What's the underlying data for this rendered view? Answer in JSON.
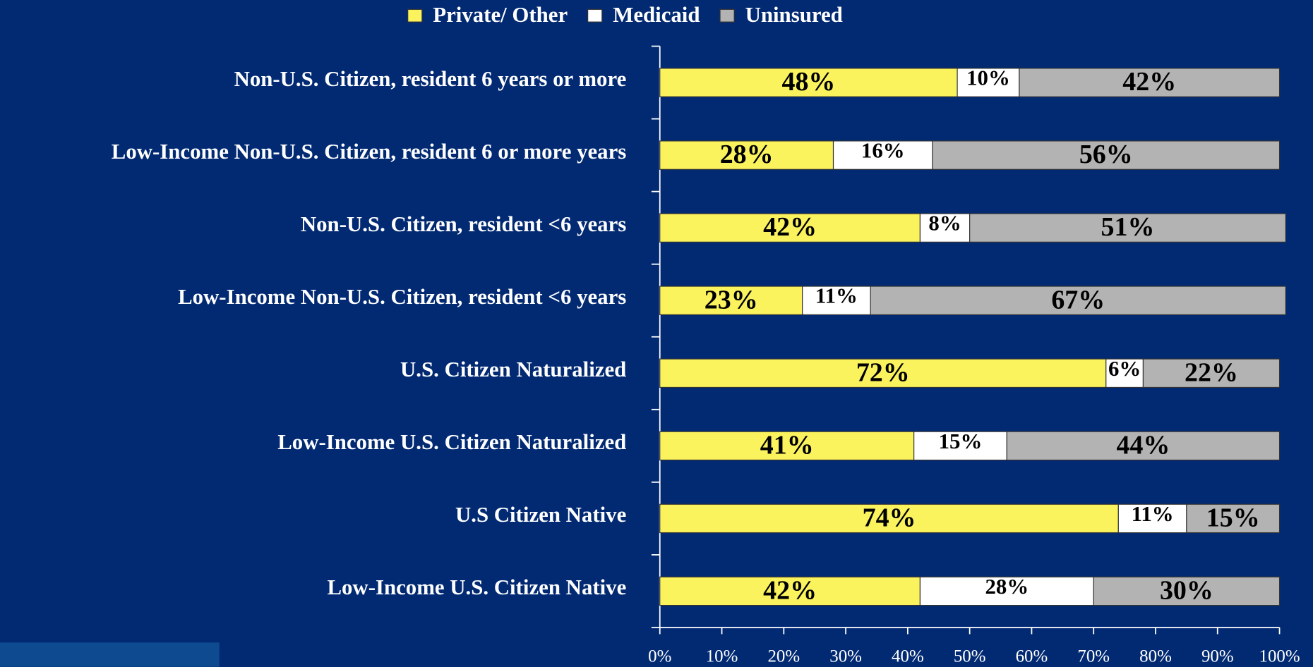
{
  "chart_data": {
    "type": "bar",
    "orientation": "horizontal",
    "stacked": true,
    "categories": [
      "Non-U.S. Citizen, resident 6 years or more",
      "Low-Income Non-U.S. Citizen, resident 6 or more years",
      "Non-U.S. Citizen, resident <6 years",
      "Low-Income Non-U.S. Citizen, resident <6 years",
      "U.S. Citizen Naturalized",
      "Low-Income U.S. Citizen Naturalized",
      "U.S Citizen Native",
      "Low-Income U.S. Citizen Native"
    ],
    "series": [
      {
        "name": "Private/ Other",
        "color": "#fbf35e",
        "values": [
          48,
          28,
          42,
          23,
          72,
          41,
          74,
          42
        ],
        "value_labels": [
          "48%",
          "28%",
          "42%",
          "23%",
          "72%",
          "41%",
          "74%",
          "42%"
        ]
      },
      {
        "name": "Medicaid",
        "color": "#ffffff",
        "values": [
          10,
          16,
          8,
          11,
          6,
          15,
          11,
          28
        ],
        "value_labels": [
          "10%",
          "16%",
          "8%",
          "11%",
          "6%",
          "15%",
          "11%",
          "28%"
        ]
      },
      {
        "name": "Uninsured",
        "color": "#b3b3b3",
        "values": [
          42,
          56,
          51,
          67,
          22,
          44,
          15,
          30
        ],
        "value_labels": [
          "42%",
          "56%",
          "51%",
          "67%",
          "22%",
          "44%",
          "15%",
          "30%"
        ]
      }
    ],
    "xlim": [
      0,
      100
    ],
    "xticks": [
      {
        "value": 0,
        "label": "0%"
      },
      {
        "value": 10,
        "label": "10%"
      },
      {
        "value": 20,
        "label": "20%"
      },
      {
        "value": 30,
        "label": "30%"
      },
      {
        "value": 40,
        "label": "40%"
      },
      {
        "value": 50,
        "label": "50%"
      },
      {
        "value": 60,
        "label": "60%"
      },
      {
        "value": 70,
        "label": "70%"
      },
      {
        "value": 80,
        "label": "80%"
      },
      {
        "value": 90,
        "label": "90%"
      },
      {
        "value": 100,
        "label": "100%"
      }
    ],
    "legend": "top"
  }
}
